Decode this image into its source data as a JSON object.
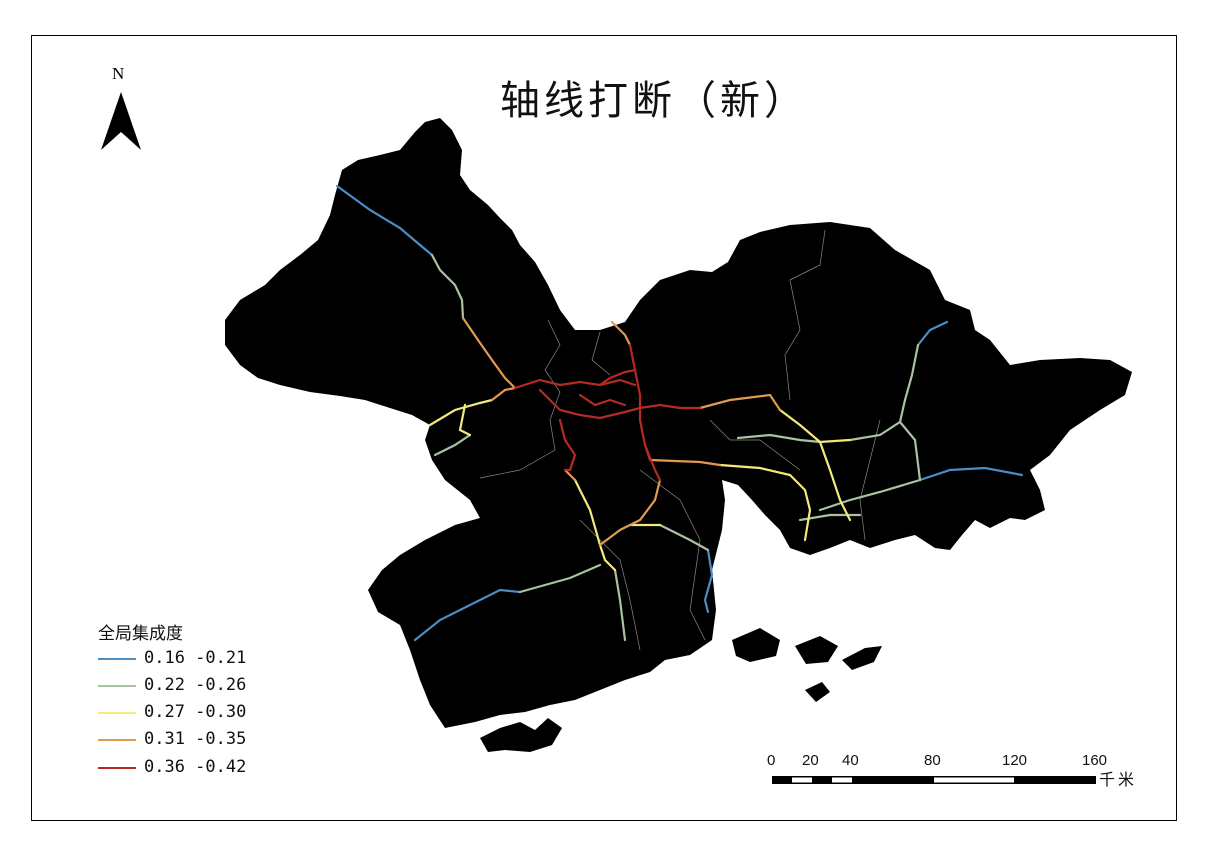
{
  "title": "轴线打断（新）",
  "north_arrow": {
    "label": "N"
  },
  "legend": {
    "title": "全局集成度",
    "items": [
      {
        "label": "0.16 -0.21",
        "color": "#4a8ec6"
      },
      {
        "label": "0.22 -0.26",
        "color": "#a9c3a0"
      },
      {
        "label": "0.27 -0.30",
        "color": "#f3ea7a"
      },
      {
        "label": "0.31 -0.35",
        "color": "#e29a52"
      },
      {
        "label": "0.36 -0.42",
        "color": "#b62a24"
      }
    ]
  },
  "scale_bar": {
    "ticks": [
      "0",
      "20",
      "40",
      "80",
      "120",
      "160"
    ],
    "unit": "千米"
  }
}
